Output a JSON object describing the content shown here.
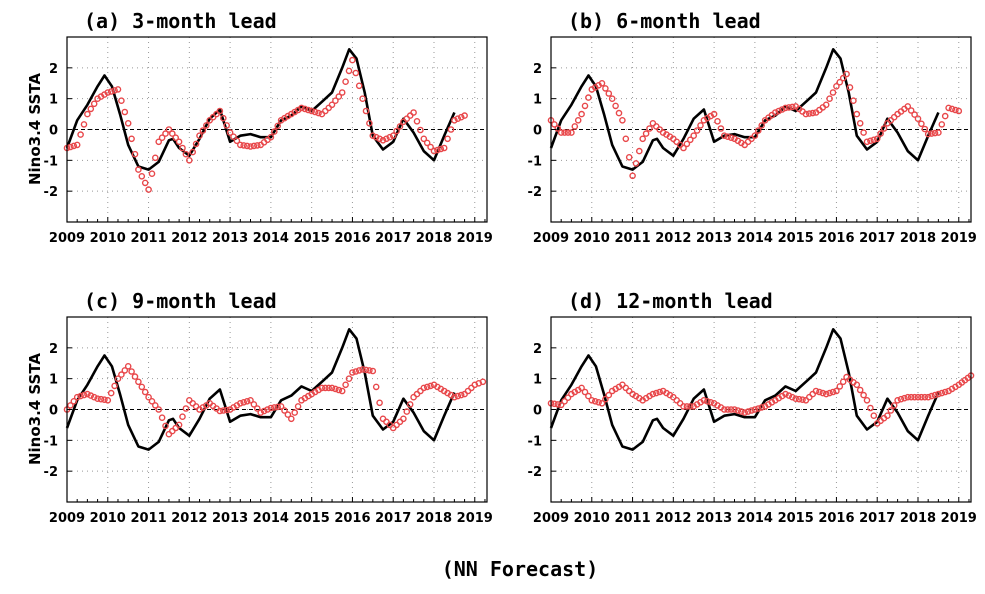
{
  "caption": "(NN Forecast)",
  "colors": {
    "observed": "#000000",
    "forecast": "#e8474a",
    "grid": "#999999"
  },
  "chart_data": [
    {
      "type": "line",
      "title": "(a) 3-month lead",
      "ylabel": "Nino3.4 SSTA",
      "xlim": [
        2009.0,
        2019.3
      ],
      "ylim": [
        -3,
        3
      ],
      "xticks": [
        "2009",
        "2010",
        "2011",
        "2012",
        "2013",
        "2014",
        "2015",
        "2016",
        "2017",
        "2018",
        "2019"
      ],
      "yticks": [
        "2",
        "1",
        "0",
        "-1",
        "-2"
      ],
      "grid": true,
      "series": [
        {
          "role": "observed",
          "style": "solid black line",
          "x": [
            2009.0,
            2009.25,
            2009.5,
            2009.75,
            2009.92,
            2010.1,
            2010.3,
            2010.5,
            2010.75,
            2011.0,
            2011.25,
            2011.5,
            2011.6,
            2011.75,
            2012.0,
            2012.25,
            2012.5,
            2012.75,
            2013.0,
            2013.25,
            2013.5,
            2013.75,
            2014.0,
            2014.25,
            2014.5,
            2014.75,
            2015.0,
            2015.25,
            2015.5,
            2015.75,
            2015.92,
            2016.1,
            2016.3,
            2016.5,
            2016.75,
            2017.0,
            2017.25,
            2017.5,
            2017.75,
            2018.0,
            2018.25,
            2018.5
          ],
          "y": [
            -0.6,
            0.3,
            0.8,
            1.4,
            1.75,
            1.4,
            0.5,
            -0.5,
            -1.2,
            -1.3,
            -1.05,
            -0.35,
            -0.3,
            -0.6,
            -0.85,
            -0.3,
            0.35,
            0.65,
            -0.4,
            -0.2,
            -0.15,
            -0.25,
            -0.25,
            0.3,
            0.45,
            0.75,
            0.6,
            0.9,
            1.2,
            2.0,
            2.6,
            2.3,
            1.2,
            -0.2,
            -0.65,
            -0.4,
            0.35,
            -0.1,
            -0.7,
            -1.0,
            -0.2,
            0.55
          ]
        },
        {
          "role": "forecast",
          "style": "red circles",
          "x": [
            2009.0,
            2009.25,
            2009.5,
            2009.75,
            2010.0,
            2010.25,
            2010.5,
            2010.75,
            2011.0,
            2011.25,
            2011.5,
            2011.75,
            2012.0,
            2012.25,
            2012.5,
            2012.75,
            2013.0,
            2013.25,
            2013.5,
            2013.75,
            2014.0,
            2014.25,
            2014.5,
            2014.75,
            2015.0,
            2015.25,
            2015.5,
            2015.75,
            2016.0,
            2016.25,
            2016.5,
            2016.75,
            2017.0,
            2017.25,
            2017.5,
            2017.75,
            2018.0,
            2018.25,
            2018.5,
            2018.75
          ],
          "y": [
            -0.6,
            -0.5,
            0.5,
            1.0,
            1.2,
            1.3,
            0.2,
            -1.3,
            -1.95,
            -0.4,
            0.0,
            -0.4,
            -1.0,
            -0.2,
            0.3,
            0.6,
            -0.1,
            -0.5,
            -0.55,
            -0.5,
            -0.25,
            0.3,
            0.5,
            0.7,
            0.6,
            0.5,
            0.8,
            1.2,
            2.25,
            1.0,
            -0.2,
            -0.35,
            -0.2,
            0.25,
            0.55,
            -0.3,
            -0.7,
            -0.6,
            0.3,
            0.45
          ]
        }
      ]
    },
    {
      "type": "line",
      "title": "(b) 6-month lead",
      "ylabel": "",
      "xlim": [
        2009.0,
        2019.3
      ],
      "ylim": [
        -3,
        3
      ],
      "xticks": [
        "2009",
        "2010",
        "2011",
        "2012",
        "2013",
        "2014",
        "2015",
        "2016",
        "2017",
        "2018",
        "2019"
      ],
      "yticks": [
        "2",
        "1",
        "0",
        "-1",
        "-2"
      ],
      "grid": true,
      "series": [
        {
          "role": "observed",
          "style": "solid black line",
          "x": [
            2009.0,
            2009.25,
            2009.5,
            2009.75,
            2009.92,
            2010.1,
            2010.3,
            2010.5,
            2010.75,
            2011.0,
            2011.25,
            2011.5,
            2011.6,
            2011.75,
            2012.0,
            2012.25,
            2012.5,
            2012.75,
            2013.0,
            2013.25,
            2013.5,
            2013.75,
            2014.0,
            2014.25,
            2014.5,
            2014.75,
            2015.0,
            2015.25,
            2015.5,
            2015.75,
            2015.92,
            2016.1,
            2016.3,
            2016.5,
            2016.75,
            2017.0,
            2017.25,
            2017.5,
            2017.75,
            2018.0,
            2018.25,
            2018.5
          ],
          "y": [
            -0.6,
            0.3,
            0.8,
            1.4,
            1.75,
            1.4,
            0.5,
            -0.5,
            -1.2,
            -1.3,
            -1.05,
            -0.35,
            -0.3,
            -0.6,
            -0.85,
            -0.3,
            0.35,
            0.65,
            -0.4,
            -0.2,
            -0.15,
            -0.25,
            -0.25,
            0.3,
            0.45,
            0.75,
            0.6,
            0.9,
            1.2,
            2.0,
            2.6,
            2.3,
            1.2,
            -0.2,
            -0.65,
            -0.4,
            0.35,
            -0.1,
            -0.7,
            -1.0,
            -0.2,
            0.55
          ]
        },
        {
          "role": "forecast",
          "style": "red circles",
          "x": [
            2009.0,
            2009.25,
            2009.5,
            2009.75,
            2010.0,
            2010.25,
            2010.5,
            2010.75,
            2011.0,
            2011.25,
            2011.5,
            2011.75,
            2012.0,
            2012.25,
            2012.5,
            2012.75,
            2013.0,
            2013.25,
            2013.5,
            2013.75,
            2014.0,
            2014.25,
            2014.5,
            2014.75,
            2015.0,
            2015.25,
            2015.5,
            2015.75,
            2016.0,
            2016.25,
            2016.5,
            2016.75,
            2017.0,
            2017.25,
            2017.5,
            2017.75,
            2018.0,
            2018.25,
            2018.5,
            2018.75,
            2019.0
          ],
          "y": [
            0.3,
            -0.1,
            -0.1,
            0.5,
            1.3,
            1.5,
            1.0,
            0.3,
            -1.5,
            -0.3,
            0.2,
            -0.1,
            -0.3,
            -0.6,
            -0.2,
            0.3,
            0.5,
            -0.2,
            -0.3,
            -0.5,
            -0.2,
            0.3,
            0.55,
            0.7,
            0.75,
            0.5,
            0.55,
            0.8,
            1.4,
            1.8,
            0.5,
            -0.4,
            -0.3,
            0.2,
            0.5,
            0.75,
            0.35,
            -0.15,
            -0.1,
            0.7,
            0.6
          ]
        }
      ]
    },
    {
      "type": "line",
      "title": "(c) 9-month lead",
      "ylabel": "Nino3.4 SSTA",
      "xlim": [
        2009.0,
        2019.3
      ],
      "ylim": [
        -3,
        3
      ],
      "xticks": [
        "2009",
        "2010",
        "2011",
        "2012",
        "2013",
        "2014",
        "2015",
        "2016",
        "2017",
        "2018",
        "2019"
      ],
      "yticks": [
        "2",
        "1",
        "0",
        "-1",
        "-2"
      ],
      "grid": true,
      "series": [
        {
          "role": "observed",
          "style": "solid black line",
          "x": [
            2009.0,
            2009.25,
            2009.5,
            2009.75,
            2009.92,
            2010.1,
            2010.3,
            2010.5,
            2010.75,
            2011.0,
            2011.25,
            2011.5,
            2011.6,
            2011.75,
            2012.0,
            2012.25,
            2012.5,
            2012.75,
            2013.0,
            2013.25,
            2013.5,
            2013.75,
            2014.0,
            2014.25,
            2014.5,
            2014.75,
            2015.0,
            2015.25,
            2015.5,
            2015.75,
            2015.92,
            2016.1,
            2016.3,
            2016.5,
            2016.75,
            2017.0,
            2017.25,
            2017.5,
            2017.75,
            2018.0,
            2018.25,
            2018.5
          ],
          "y": [
            -0.6,
            0.3,
            0.8,
            1.4,
            1.75,
            1.4,
            0.5,
            -0.5,
            -1.2,
            -1.3,
            -1.05,
            -0.35,
            -0.3,
            -0.6,
            -0.85,
            -0.3,
            0.35,
            0.65,
            -0.4,
            -0.2,
            -0.15,
            -0.25,
            -0.25,
            0.3,
            0.45,
            0.75,
            0.6,
            0.9,
            1.2,
            2.0,
            2.6,
            2.3,
            1.2,
            -0.2,
            -0.65,
            -0.4,
            0.35,
            -0.1,
            -0.7,
            -1.0,
            -0.2,
            0.55
          ]
        },
        {
          "role": "forecast",
          "style": "red circles",
          "x": [
            2009.0,
            2009.25,
            2009.5,
            2009.75,
            2010.0,
            2010.25,
            2010.5,
            2010.75,
            2011.0,
            2011.25,
            2011.5,
            2011.75,
            2012.0,
            2012.25,
            2012.5,
            2012.75,
            2013.0,
            2013.25,
            2013.5,
            2013.75,
            2014.0,
            2014.25,
            2014.5,
            2014.75,
            2015.0,
            2015.25,
            2015.5,
            2015.75,
            2016.0,
            2016.25,
            2016.5,
            2016.75,
            2017.0,
            2017.25,
            2017.5,
            2017.75,
            2018.0,
            2018.25,
            2018.5,
            2018.75,
            2019.0,
            2019.2
          ],
          "y": [
            0.0,
            0.4,
            0.5,
            0.35,
            0.3,
            1.0,
            1.4,
            0.9,
            0.4,
            0.0,
            -0.8,
            -0.5,
            0.3,
            0.0,
            0.2,
            -0.05,
            0.0,
            0.2,
            0.3,
            -0.1,
            0.05,
            0.1,
            -0.3,
            0.3,
            0.5,
            0.7,
            0.7,
            0.6,
            1.2,
            1.3,
            1.25,
            -0.3,
            -0.6,
            -0.3,
            0.4,
            0.7,
            0.8,
            0.6,
            0.4,
            0.5,
            0.8,
            0.9
          ]
        }
      ]
    },
    {
      "type": "line",
      "title": "(d) 12-month lead",
      "ylabel": "",
      "xlim": [
        2009.0,
        2019.3
      ],
      "ylim": [
        -3,
        3
      ],
      "xticks": [
        "2009",
        "2010",
        "2011",
        "2012",
        "2013",
        "2014",
        "2015",
        "2016",
        "2017",
        "2018",
        "2019"
      ],
      "yticks": [
        "2",
        "1",
        "0",
        "-1",
        "-2"
      ],
      "grid": true,
      "series": [
        {
          "role": "observed",
          "style": "solid black line",
          "x": [
            2009.0,
            2009.25,
            2009.5,
            2009.75,
            2009.92,
            2010.1,
            2010.3,
            2010.5,
            2010.75,
            2011.0,
            2011.25,
            2011.5,
            2011.6,
            2011.75,
            2012.0,
            2012.25,
            2012.5,
            2012.75,
            2013.0,
            2013.25,
            2013.5,
            2013.75,
            2014.0,
            2014.25,
            2014.5,
            2014.75,
            2015.0,
            2015.25,
            2015.5,
            2015.75,
            2015.92,
            2016.1,
            2016.3,
            2016.5,
            2016.75,
            2017.0,
            2017.25,
            2017.5,
            2017.75,
            2018.0,
            2018.25,
            2018.5
          ],
          "y": [
            -0.6,
            0.3,
            0.8,
            1.4,
            1.75,
            1.4,
            0.5,
            -0.5,
            -1.2,
            -1.3,
            -1.05,
            -0.35,
            -0.3,
            -0.6,
            -0.85,
            -0.3,
            0.35,
            0.65,
            -0.4,
            -0.2,
            -0.15,
            -0.25,
            -0.25,
            0.3,
            0.45,
            0.75,
            0.6,
            0.9,
            1.2,
            2.0,
            2.6,
            2.3,
            1.2,
            -0.2,
            -0.65,
            -0.4,
            0.35,
            -0.1,
            -0.7,
            -1.0,
            -0.2,
            0.55
          ]
        },
        {
          "role": "forecast",
          "style": "red circles",
          "x": [
            2009.0,
            2009.25,
            2009.5,
            2009.75,
            2010.0,
            2010.25,
            2010.5,
            2010.75,
            2011.0,
            2011.25,
            2011.5,
            2011.75,
            2012.0,
            2012.25,
            2012.5,
            2012.75,
            2013.0,
            2013.25,
            2013.5,
            2013.75,
            2014.0,
            2014.25,
            2014.5,
            2014.75,
            2015.0,
            2015.25,
            2015.5,
            2015.75,
            2016.0,
            2016.25,
            2016.5,
            2016.75,
            2017.0,
            2017.25,
            2017.5,
            2017.75,
            2018.0,
            2018.25,
            2018.5,
            2018.75,
            2019.0,
            2019.3
          ],
          "y": [
            0.2,
            0.15,
            0.5,
            0.7,
            0.3,
            0.2,
            0.6,
            0.8,
            0.5,
            0.3,
            0.5,
            0.6,
            0.4,
            0.1,
            0.1,
            0.3,
            0.2,
            0.0,
            0.0,
            -0.1,
            0.0,
            0.1,
            0.3,
            0.5,
            0.35,
            0.3,
            0.6,
            0.5,
            0.6,
            1.05,
            0.8,
            0.3,
            -0.45,
            -0.2,
            0.3,
            0.4,
            0.4,
            0.4,
            0.5,
            0.6,
            0.8,
            1.1
          ]
        }
      ]
    }
  ]
}
